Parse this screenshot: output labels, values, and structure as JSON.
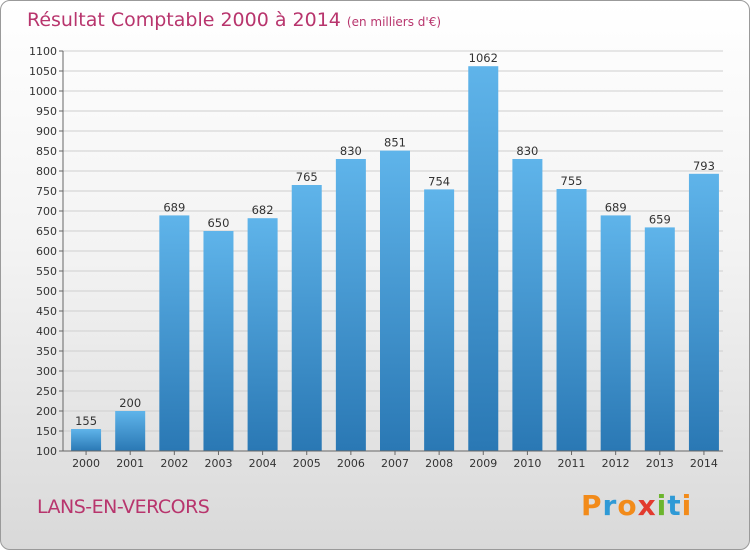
{
  "header": {
    "title": "Résultat Comptable 2000 à 2014",
    "unit": "(en milliers d'€)"
  },
  "footer": {
    "commune": "LANS-EN-VERCORS",
    "logo_text": "Proxiti"
  },
  "colors": {
    "accent": "#b8356d",
    "bar_top": "#5fb4ea",
    "bar_bottom": "#2a78b4",
    "logo": [
      "#f28b1a",
      "#2f9ad6",
      "#f28b1a",
      "#e23a2e",
      "#6cb52d",
      "#2f9ad6",
      "#f28b1a"
    ]
  },
  "chart_data": {
    "type": "bar",
    "title": "Résultat Comptable 2000 à 2014",
    "categories": [
      "2000",
      "2001",
      "2002",
      "2003",
      "2004",
      "2005",
      "2006",
      "2007",
      "2008",
      "2009",
      "2010",
      "2011",
      "2012",
      "2013",
      "2014"
    ],
    "values": [
      155,
      200,
      689,
      650,
      682,
      765,
      830,
      851,
      754,
      1062,
      830,
      755,
      689,
      659,
      793
    ],
    "ylim": [
      100,
      1100
    ],
    "ytick_step": 50,
    "grid": true,
    "data_labels": true
  }
}
